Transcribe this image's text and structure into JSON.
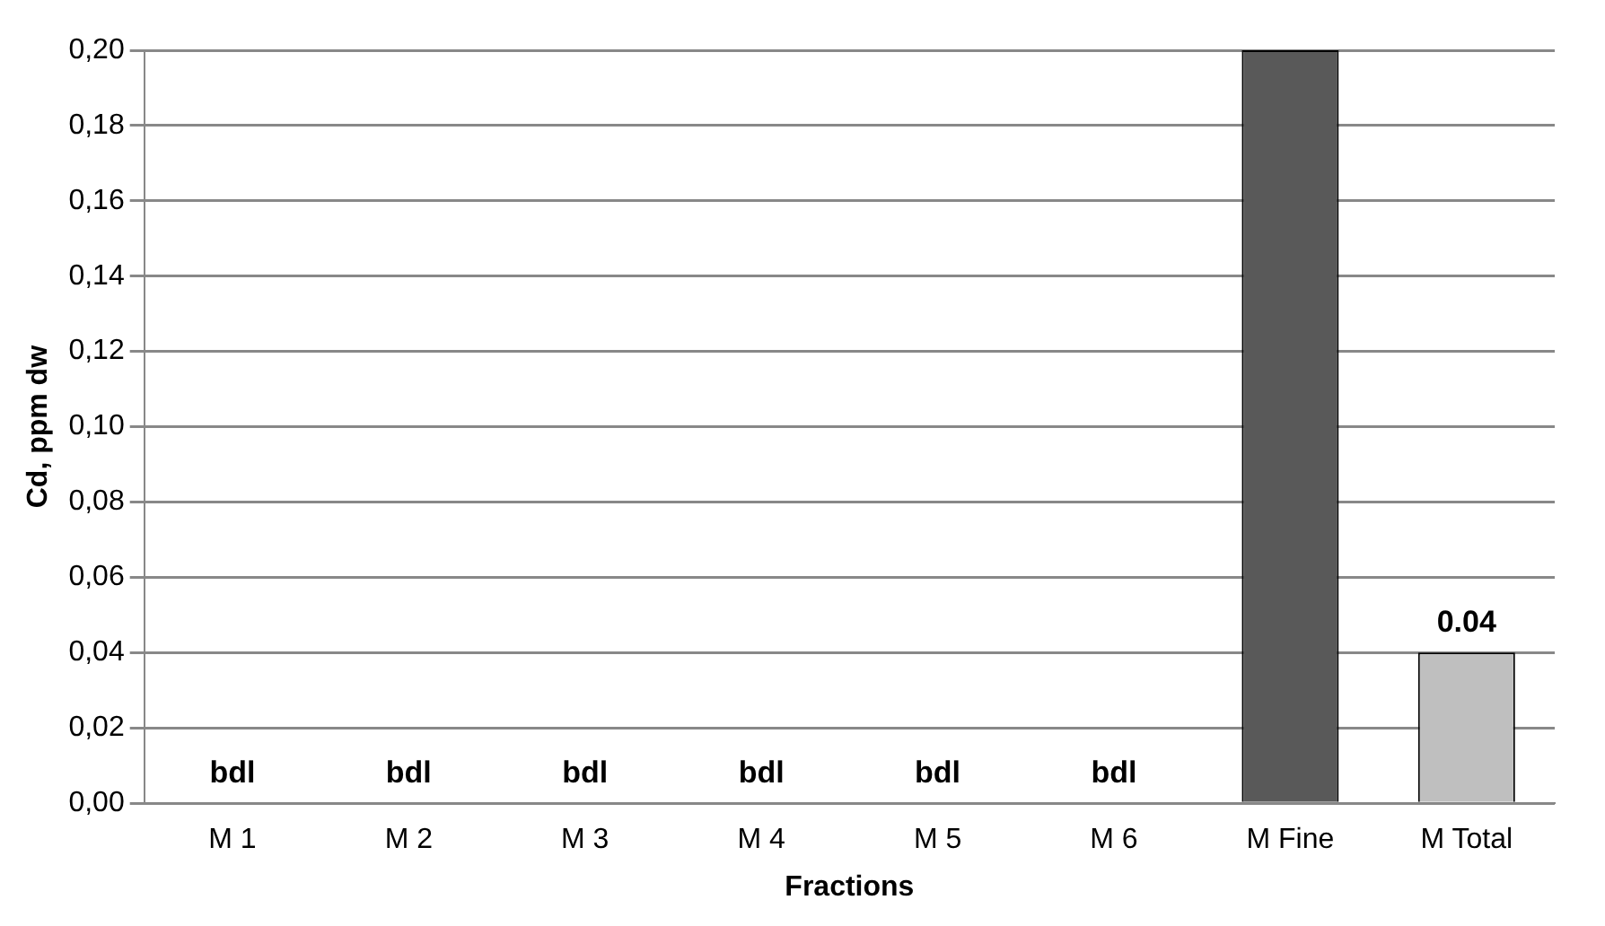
{
  "chart_data": {
    "type": "bar",
    "xlabel": "Fractions",
    "ylabel": "Cd, ppm dw",
    "categories": [
      "M 1",
      "M 2",
      "M 3",
      "M 4",
      "M 5",
      "M 6",
      "M Fine",
      "M Total"
    ],
    "values": [
      0,
      0,
      0,
      0,
      0,
      0,
      0.2,
      0.04
    ],
    "colors": [
      "#404040",
      "#404040",
      "#404040",
      "#404040",
      "#404040",
      "#404040",
      "#595959",
      "#bfbfbf"
    ],
    "value_labels": [
      "bdl",
      "bdl",
      "bdl",
      "bdl",
      "bdl",
      "bdl",
      null,
      "0.04"
    ],
    "ylim": [
      0,
      0.2
    ],
    "yticks": [
      {
        "value": 0,
        "label": "0,00"
      },
      {
        "value": 0.02,
        "label": "0,02"
      },
      {
        "value": 0.04,
        "label": "0,04"
      },
      {
        "value": 0.06,
        "label": "0,06"
      },
      {
        "value": 0.08,
        "label": "0,08"
      },
      {
        "value": 0.1,
        "label": "0,10"
      },
      {
        "value": 0.12,
        "label": "0,12"
      },
      {
        "value": 0.14,
        "label": "0,14"
      },
      {
        "value": 0.16,
        "label": "0,16"
      },
      {
        "value": 0.18,
        "label": "0,18"
      },
      {
        "value": 0.2,
        "label": "0,20"
      }
    ],
    "grid": "y"
  }
}
